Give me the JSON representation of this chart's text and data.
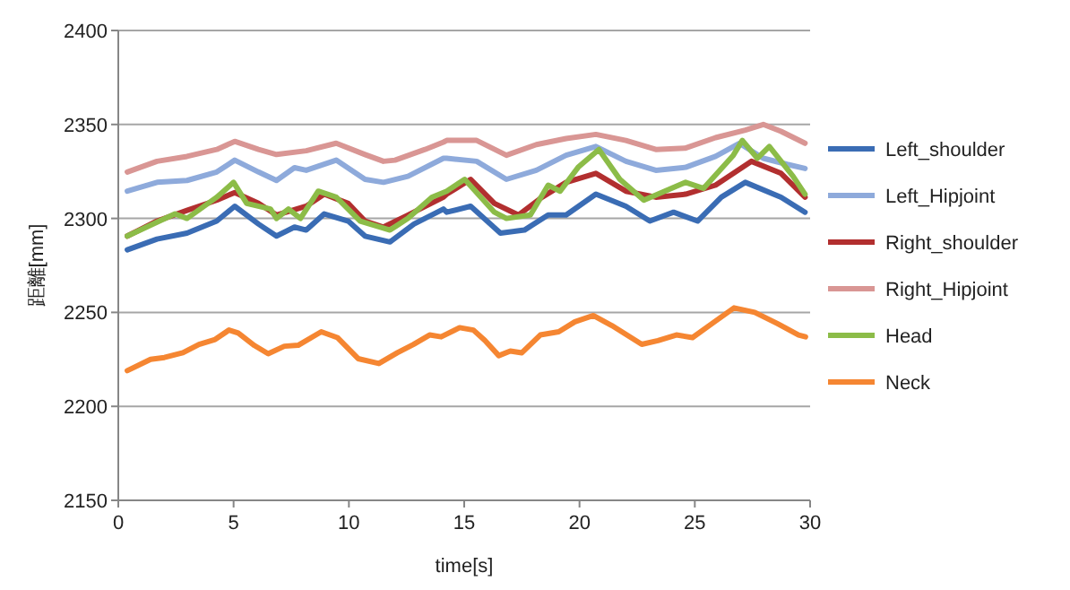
{
  "chart_data": {
    "type": "line",
    "xlabel": "time[s]",
    "ylabel": "距離[mm]",
    "xlim": [
      0,
      30
    ],
    "xticks": [
      0,
      5,
      10,
      15,
      20,
      25,
      30
    ],
    "ylim": [
      2150,
      2400
    ],
    "yticks": [
      2150,
      2200,
      2250,
      2300,
      2350,
      2400
    ],
    "grid": "y",
    "legend": "right",
    "series": [
      {
        "name": "Left_shoulder",
        "color": "#3a6cb4",
        "x": [
          0.39,
          1.68,
          2.98,
          4.27,
          5.05,
          6.08,
          6.86,
          7.64,
          8.15,
          8.93,
          9.97,
          10.7,
          11.78,
          12.82,
          14.1,
          14.24,
          15.28,
          16.57,
          17.61,
          18.64,
          19.42,
          20.71,
          22.01,
          23.05,
          24.08,
          25.12,
          26.15,
          27.19,
          28.74,
          29.78
        ],
        "values": [
          2283.3,
          2289,
          2292.2,
          2298.6,
          2306.5,
          2297,
          2290.6,
          2295.4,
          2293.8,
          2302.4,
          2298.6,
          2290.6,
          2287.5,
          2297,
          2305,
          2303.3,
          2306.5,
          2292.2,
          2293.8,
          2301.8,
          2301.8,
          2312.9,
          2306.5,
          2298.6,
          2303.3,
          2298.6,
          2311.3,
          2319.2,
          2311.3,
          2303.3
        ]
      },
      {
        "name": "Left_Hipjoint",
        "color": "#8eaadb",
        "x": [
          0.39,
          1.68,
          2.98,
          4.27,
          5.05,
          6.08,
          6.86,
          7.64,
          8.15,
          9.45,
          10.7,
          11.5,
          12.56,
          14.1,
          14.24,
          15.54,
          16.83,
          18.13,
          19.42,
          20.71,
          22.01,
          23.31,
          24.6,
          25.9,
          26.93,
          27.97,
          29.0,
          29.78
        ],
        "values": [
          2314.5,
          2319.2,
          2320.2,
          2324.7,
          2331,
          2324.7,
          2320.2,
          2327,
          2325.6,
          2331,
          2320.8,
          2319.2,
          2322.4,
          2332,
          2332,
          2330.4,
          2320.8,
          2325.6,
          2333.6,
          2338.3,
          2330.4,
          2325.6,
          2327.2,
          2333,
          2340,
          2332,
          2328.8,
          2326.6
        ]
      },
      {
        "name": "Right_shoulder",
        "color": "#b22f2f",
        "x": [
          0.39,
          1.68,
          2.98,
          4.27,
          5.05,
          6.08,
          6.86,
          8.15,
          8.93,
          9.97,
          10.7,
          11.5,
          12.56,
          14.1,
          14.24,
          15.28,
          16.31,
          17.35,
          18.38,
          19.42,
          20.71,
          22.01,
          23.31,
          24.6,
          25.9,
          27.45,
          28.74,
          29.78
        ],
        "values": [
          2290.6,
          2298.6,
          2304.3,
          2309.7,
          2313.8,
          2308,
          2301.8,
          2306.5,
          2312.9,
          2308,
          2298.6,
          2295.4,
          2301.8,
          2311.3,
          2312.9,
          2320.8,
          2308,
          2301.8,
          2311.3,
          2319.2,
          2324,
          2314.5,
          2311.3,
          2312.9,
          2317.7,
          2330.4,
          2324,
          2311.3
        ]
      },
      {
        "name": "Right_Hipjoint",
        "color": "#d99694",
        "x": [
          0.39,
          1.68,
          2.98,
          4.27,
          5.05,
          6.08,
          6.86,
          8.15,
          9.45,
          10.7,
          11.5,
          12.0,
          13.3,
          14.1,
          14.24,
          15.54,
          16.83,
          18.13,
          19.42,
          20.71,
          22.01,
          23.31,
          24.6,
          25.9,
          27.19,
          27.97,
          28.74,
          29.78
        ],
        "values": [
          2324.7,
          2330.4,
          2333,
          2336.7,
          2341,
          2336.7,
          2334,
          2336,
          2340,
          2334,
          2330.4,
          2331,
          2336.7,
          2340.6,
          2341.5,
          2341.5,
          2333.6,
          2339.3,
          2342.5,
          2344.7,
          2341.5,
          2336.7,
          2337.4,
          2343,
          2347,
          2350,
          2346.3,
          2340
        ]
      },
      {
        "name": "Head",
        "color": "#8cbc48",
        "x": [
          0.39,
          1.68,
          2.46,
          2.98,
          4.27,
          5.0,
          5.57,
          6.6,
          6.86,
          7.38,
          7.9,
          8.67,
          9.45,
          10.49,
          11.78,
          12.56,
          13.6,
          14.24,
          15.02,
          16.31,
          16.83,
          17.87,
          18.64,
          19.16,
          19.94,
          20.84,
          21.75,
          22.79,
          24.6,
          25.38,
          26.67,
          27.06,
          27.71,
          28.23,
          29.26,
          29.78
        ],
        "values": [
          2290.6,
          2298,
          2302.4,
          2300,
          2311.3,
          2319.2,
          2308,
          2305,
          2300,
          2305,
          2300,
          2314.5,
          2311.3,
          2298.6,
          2293.8,
          2300,
          2311.3,
          2314.5,
          2320.8,
          2303.3,
          2300,
          2301.8,
          2317.7,
          2314.5,
          2327.2,
          2336.7,
          2320.8,
          2309.7,
          2319.2,
          2316,
          2333.6,
          2341.5,
          2332,
          2338.3,
          2322.4,
          2312.9
        ]
      },
      {
        "name": "Neck",
        "color": "#f58632",
        "x": [
          0.39,
          1.4,
          2.0,
          2.8,
          3.5,
          4.2,
          4.8,
          5.2,
          5.9,
          6.5,
          7.2,
          7.8,
          8.8,
          9.5,
          10.4,
          11.3,
          12.1,
          12.8,
          13.5,
          14.0,
          14.8,
          15.4,
          15.9,
          16.5,
          17.0,
          17.5,
          18.3,
          19.1,
          19.8,
          20.6,
          21.4,
          22.7,
          23.4,
          24.2,
          24.9,
          25.8,
          26.7,
          27.6,
          28.6,
          29.5,
          29.8
        ],
        "values": [
          2219,
          2225,
          2226,
          2228.5,
          2233,
          2235.6,
          2240.6,
          2239,
          2232.4,
          2228,
          2232,
          2232.5,
          2239.7,
          2236.6,
          2225.4,
          2222.8,
          2228.5,
          2233,
          2238,
          2237,
          2241.9,
          2240.6,
          2235,
          2227,
          2229.4,
          2228.5,
          2238,
          2239.7,
          2245,
          2248.3,
          2243,
          2233,
          2235,
          2238,
          2236.6,
          2244.5,
          2252.4,
          2250,
          2243.9,
          2238,
          2237
        ]
      }
    ]
  }
}
